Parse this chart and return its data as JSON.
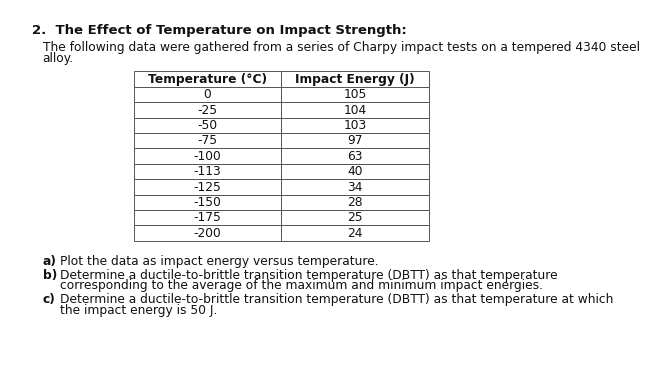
{
  "title": "2.  The Effect of Temperature on Impact Strength:",
  "intro_line1": "The following data were gathered from a series of Charpy impact tests on a tempered 4340 steel",
  "intro_line2": "alloy.",
  "col_headers": [
    "Temperature (°C)",
    "Impact Energy (J)"
  ],
  "table_data": [
    [
      "0",
      "105"
    ],
    [
      "-25",
      "104"
    ],
    [
      "-50",
      "103"
    ],
    [
      "-75",
      "97"
    ],
    [
      "-100",
      "63"
    ],
    [
      "-113",
      "40"
    ],
    [
      "-125",
      "34"
    ],
    [
      "-150",
      "28"
    ],
    [
      "-175",
      "25"
    ],
    [
      "-200",
      "24"
    ]
  ],
  "questions": [
    {
      "label": "a)",
      "text": "Plot the data as impact energy versus temperature."
    },
    {
      "label": "b)",
      "text": "Determine a ductile-to-brittle transition temperature (DBTT) as that temperature\ncorresponding to the average of the maximum and minimum impact energies."
    },
    {
      "label": "c)",
      "text": "Determine a ductile-to-brittle transition temperature (DBTT) as that temperature at which\nthe impact energy is 50 J."
    }
  ],
  "bg_color": "#ffffff",
  "table_border_color": "#555555",
  "font_color": "#111111",
  "title_fontsize": 9.5,
  "body_fontsize": 8.8,
  "table_fontsize": 8.8
}
